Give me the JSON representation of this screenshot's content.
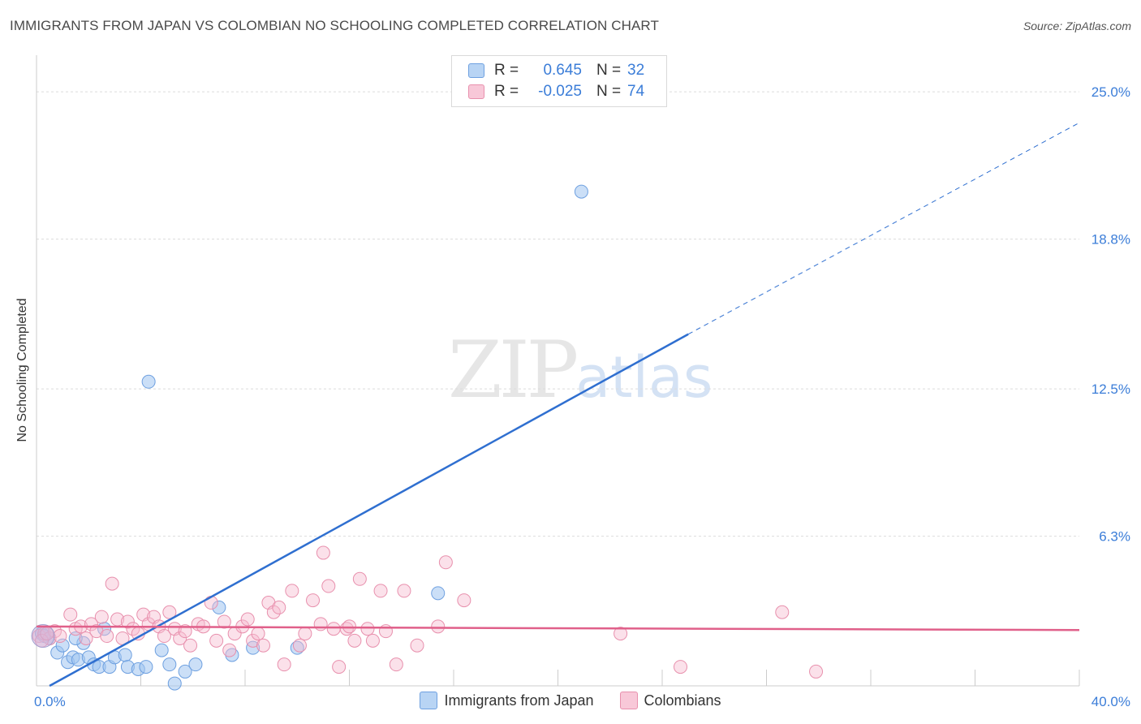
{
  "header": {
    "title": "IMMIGRANTS FROM JAPAN VS COLOMBIAN NO SCHOOLING COMPLETED CORRELATION CHART",
    "source": "Source: ZipAtlas.com"
  },
  "watermark": {
    "zip": "ZIP",
    "atlas": "atlas"
  },
  "stats": [
    {
      "r_label": "R =",
      "r_value": "0.645",
      "n_label": "N =",
      "n_value": "32",
      "color": "#a8c8f0",
      "border": "#6ea0e0"
    },
    {
      "r_label": "R =",
      "r_value": "-0.025",
      "n_label": "N =",
      "n_value": "74",
      "color": "#f6bcd0",
      "border": "#e890ad"
    }
  ],
  "legend": [
    {
      "label": "Immigrants from Japan",
      "color": "#b8d4f4",
      "border": "#6ea0e0"
    },
    {
      "label": "Colombians",
      "color": "#f8c8d8",
      "border": "#e890ad"
    }
  ],
  "chart_data": {
    "type": "scatter",
    "title": "IMMIGRANTS FROM JAPAN VS COLOMBIAN NO SCHOOLING COMPLETED CORRELATION CHART",
    "xlabel": "",
    "ylabel": "No Schooling Completed",
    "xlim": [
      0,
      40
    ],
    "ylim": [
      0,
      26.2
    ],
    "x_tick_labels": [
      {
        "value": 0,
        "label": "0.0%"
      },
      {
        "value": 40,
        "label": "40.0%"
      }
    ],
    "y_ticks": [
      {
        "value": 6.3,
        "label": "6.3%"
      },
      {
        "value": 12.5,
        "label": "12.5%"
      },
      {
        "value": 18.8,
        "label": "18.8%"
      },
      {
        "value": 25.0,
        "label": "25.0%"
      }
    ],
    "series": [
      {
        "name": "Immigrants from Japan",
        "color": "#6ea0e0",
        "fill": "rgba(160,196,240,0.55)",
        "trend": {
          "x0": 0.5,
          "y0": 0.0,
          "x1": 25.0,
          "y1": 14.8,
          "dash_to_x": 40.0,
          "dash_to_y": 23.7,
          "color": "#2f6fd0"
        },
        "points": [
          [
            0.2,
            2.2
          ],
          [
            0.5,
            2.0
          ],
          [
            0.8,
            1.4
          ],
          [
            1.0,
            1.7
          ],
          [
            1.2,
            1.0
          ],
          [
            1.4,
            1.2
          ],
          [
            1.6,
            1.1
          ],
          [
            1.8,
            1.8
          ],
          [
            2.0,
            1.2
          ],
          [
            2.2,
            0.9
          ],
          [
            2.4,
            0.8
          ],
          [
            2.6,
            2.4
          ],
          [
            2.8,
            0.8
          ],
          [
            3.0,
            1.2
          ],
          [
            3.4,
            1.3
          ],
          [
            3.5,
            0.8
          ],
          [
            3.9,
            0.7
          ],
          [
            4.2,
            0.8
          ],
          [
            4.3,
            12.8
          ],
          [
            4.8,
            1.5
          ],
          [
            5.1,
            0.9
          ],
          [
            5.3,
            0.1
          ],
          [
            5.7,
            0.6
          ],
          [
            6.1,
            0.9
          ],
          [
            7.0,
            3.3
          ],
          [
            7.5,
            1.3
          ],
          [
            8.3,
            1.6
          ],
          [
            10.0,
            1.6
          ],
          [
            15.4,
            3.9
          ],
          [
            20.9,
            20.8
          ],
          [
            0.3,
            2.1
          ],
          [
            1.5,
            2.0
          ]
        ]
      },
      {
        "name": "Colombians",
        "color": "#e890ad",
        "fill": "rgba(246,188,208,0.45)",
        "trend": {
          "x0": 0.0,
          "y0": 2.5,
          "x1": 40.0,
          "y1": 2.35,
          "color": "#e0608a"
        },
        "points": [
          [
            0.1,
            2.1
          ],
          [
            0.3,
            2.2
          ],
          [
            0.5,
            2.0
          ],
          [
            0.7,
            2.3
          ],
          [
            0.9,
            2.1
          ],
          [
            1.3,
            3.0
          ],
          [
            1.5,
            2.4
          ],
          [
            1.7,
            2.5
          ],
          [
            1.9,
            2.0
          ],
          [
            2.1,
            2.6
          ],
          [
            2.3,
            2.3
          ],
          [
            2.5,
            2.9
          ],
          [
            2.7,
            2.1
          ],
          [
            2.9,
            4.3
          ],
          [
            3.1,
            2.8
          ],
          [
            3.3,
            2.0
          ],
          [
            3.5,
            2.7
          ],
          [
            3.7,
            2.4
          ],
          [
            3.9,
            2.2
          ],
          [
            4.1,
            3.0
          ],
          [
            4.3,
            2.6
          ],
          [
            4.5,
            2.9
          ],
          [
            4.7,
            2.5
          ],
          [
            4.9,
            2.1
          ],
          [
            5.1,
            3.1
          ],
          [
            5.3,
            2.4
          ],
          [
            5.5,
            2.0
          ],
          [
            5.7,
            2.3
          ],
          [
            5.9,
            1.7
          ],
          [
            6.2,
            2.6
          ],
          [
            6.4,
            2.5
          ],
          [
            6.7,
            3.5
          ],
          [
            6.9,
            1.9
          ],
          [
            7.2,
            2.7
          ],
          [
            7.4,
            1.5
          ],
          [
            7.6,
            2.2
          ],
          [
            7.9,
            2.5
          ],
          [
            8.1,
            2.8
          ],
          [
            8.3,
            1.9
          ],
          [
            8.5,
            2.2
          ],
          [
            8.7,
            1.7
          ],
          [
            8.9,
            3.5
          ],
          [
            9.1,
            3.1
          ],
          [
            9.3,
            3.3
          ],
          [
            9.5,
            0.9
          ],
          [
            9.8,
            4.0
          ],
          [
            10.1,
            1.7
          ],
          [
            10.3,
            2.2
          ],
          [
            10.6,
            3.6
          ],
          [
            10.9,
            2.6
          ],
          [
            11.2,
            4.2
          ],
          [
            11.4,
            2.4
          ],
          [
            11.6,
            0.8
          ],
          [
            11.9,
            2.4
          ],
          [
            12.2,
            1.9
          ],
          [
            12.4,
            4.5
          ],
          [
            12.7,
            2.4
          ],
          [
            12.9,
            1.9
          ],
          [
            13.2,
            4.0
          ],
          [
            13.4,
            2.3
          ],
          [
            13.8,
            0.9
          ],
          [
            14.1,
            4.0
          ],
          [
            14.6,
            1.7
          ],
          [
            15.4,
            2.5
          ],
          [
            15.7,
            5.2
          ],
          [
            16.4,
            3.6
          ],
          [
            11.0,
            5.6
          ],
          [
            12.0,
            2.5
          ],
          [
            22.4,
            2.2
          ],
          [
            24.7,
            0.8
          ],
          [
            28.6,
            3.1
          ],
          [
            29.9,
            0.6
          ],
          [
            0.2,
            1.9
          ],
          [
            0.4,
            2.2
          ]
        ]
      }
    ]
  }
}
